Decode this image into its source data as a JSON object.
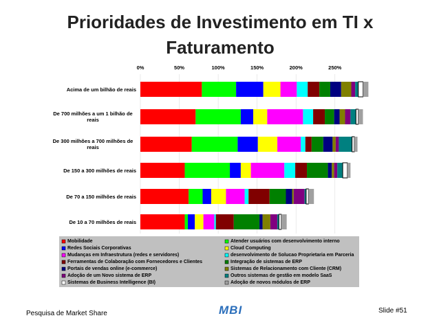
{
  "chart_data": {
    "type": "stacked_barh",
    "title": "Prioridades de Investimento em TI x Faturamento",
    "categories": [
      "Acima de um bilhão de reais",
      "De 700 milhões a um 1 bilhão de reais",
      "De 300 milhões a 700 milhões de reais",
      "De 150 a 300 milhões de reais",
      "De 70 a 150 milhões de reais",
      "De 10 a 70 milhões de reais"
    ],
    "xlim": [
      0,
      290
    ],
    "xticks": [
      {
        "value": 0,
        "label": "0%"
      },
      {
        "value": 50,
        "label": "50%"
      },
      {
        "value": 100,
        "label": "100%"
      },
      {
        "value": 150,
        "label": "150%"
      },
      {
        "value": 200,
        "label": "200%"
      },
      {
        "value": 250,
        "label": "250%"
      }
    ],
    "grid": true,
    "series": [
      {
        "name": "Mobilidade",
        "color": "#ff0000",
        "values": [
          79,
          71,
          66,
          57,
          62,
          57
        ]
      },
      {
        "name": "Atender usuários com desenvolvimento interno",
        "color": "#00ff00",
        "values": [
          44,
          58,
          59,
          58,
          18,
          4
        ]
      },
      {
        "name": "Redes Sociais Corporativas",
        "color": "#0000ff",
        "values": [
          35,
          16,
          26,
          14,
          11,
          9
        ]
      },
      {
        "name": "Cloud Computing",
        "color": "#ffff00",
        "values": [
          22,
          18,
          25,
          13,
          19,
          11
        ]
      },
      {
        "name": "Mudanças em Infraestrutura (redes e servidores)",
        "color": "#ff00ff",
        "values": [
          21,
          46,
          30,
          43,
          24,
          14
        ]
      },
      {
        "name": "desenvolvimento de Solucao Proprietaria em Parceria",
        "color": "#00ffff",
        "values": [
          14,
          13,
          6,
          14,
          5,
          2
        ]
      },
      {
        "name": "Ferramentas de Colaboração com Fornecedores e Clientes",
        "color": "#800000",
        "values": [
          15,
          15,
          8,
          15,
          27,
          23
        ]
      },
      {
        "name": "Integração de sistemas de ERP",
        "color": "#008000",
        "values": [
          14,
          12,
          15,
          27,
          21,
          33
        ]
      },
      {
        "name": "Portais de vendas online (e-commerce)",
        "color": "#000080",
        "values": [
          14,
          7,
          12,
          5,
          8,
          4
        ]
      },
      {
        "name": "Sistemas de Relacionamento com Cliente (CRM)",
        "color": "#808000",
        "values": [
          13,
          7,
          4,
          3,
          2,
          10
        ]
      },
      {
        "name": "Adoção de um Novo sistema de ERP",
        "color": "#800080",
        "values": [
          5,
          7,
          4,
          4,
          14,
          9
        ]
      },
      {
        "name": "Outros sistemas de gestão em modelo SaaS",
        "color": "#008080",
        "values": [
          4,
          7,
          17,
          7,
          2,
          2
        ]
      },
      {
        "name": "Sistemas de Business Intelligence (BI)",
        "color": "#ffffff",
        "values": [
          6,
          3,
          3,
          6,
          3,
          3
        ]
      },
      {
        "name": "Adoção de novos módulos de ERP",
        "color": "#a0a0a0",
        "values": [
          7,
          6,
          4,
          4,
          7,
          7
        ]
      }
    ]
  },
  "footer": {
    "source": "Pesquisa de Market Share",
    "logo": "MBI",
    "slide": "Slide #51"
  }
}
